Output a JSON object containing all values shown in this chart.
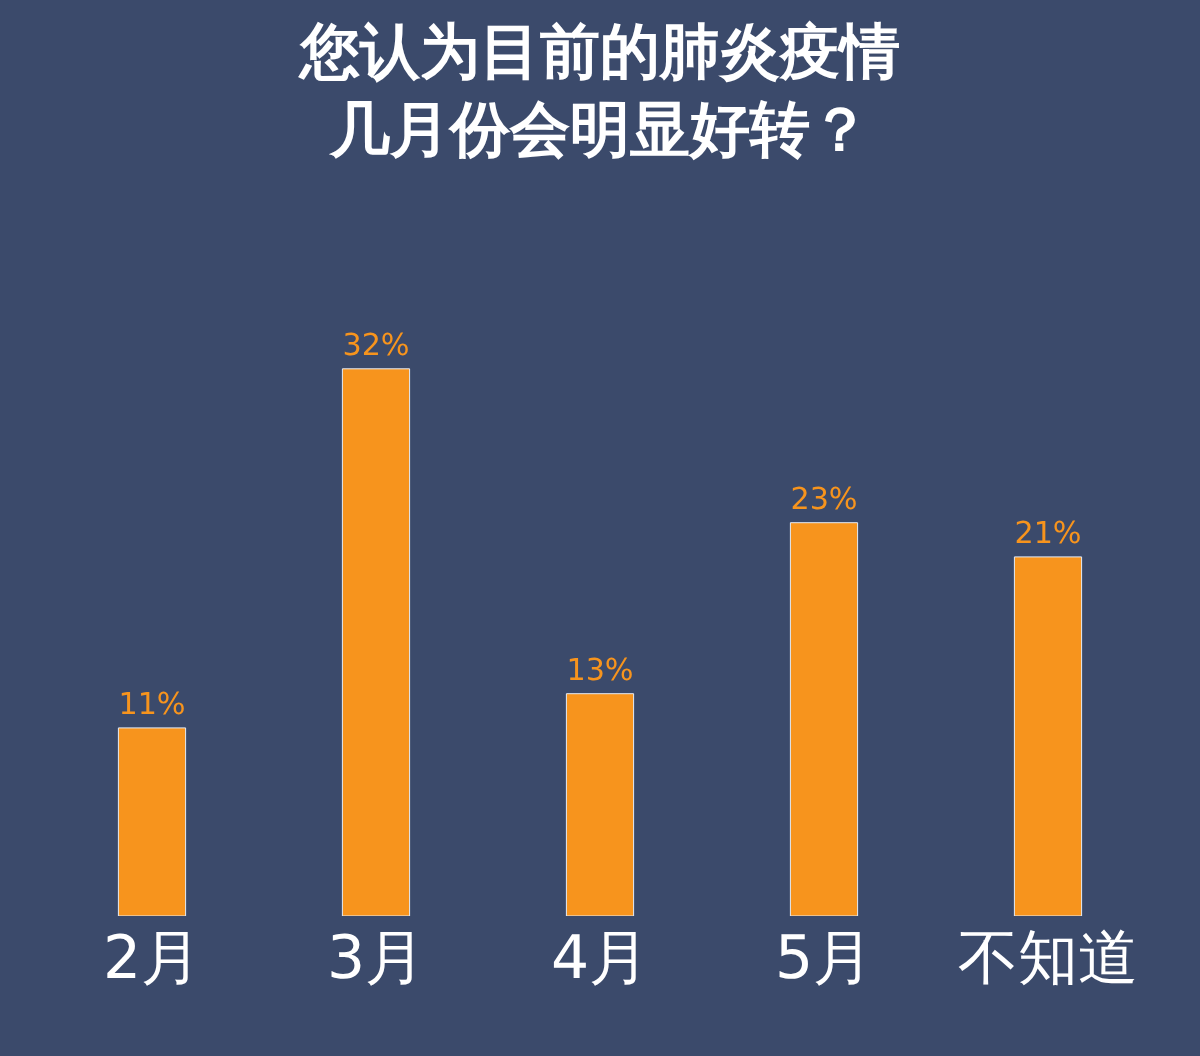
{
  "chart_data": {
    "type": "bar",
    "title": "您认为目前的肺炎疫情几月份会明显好转？",
    "categories": [
      "2月",
      "3月",
      "4月",
      "5月",
      "不知道"
    ],
    "values": [
      11,
      32,
      13,
      23,
      21
    ],
    "value_labels": [
      "11%",
      "32%",
      "13%",
      "23%",
      "21%"
    ],
    "color": "#f7941d",
    "grid": false,
    "legend": false
  }
}
